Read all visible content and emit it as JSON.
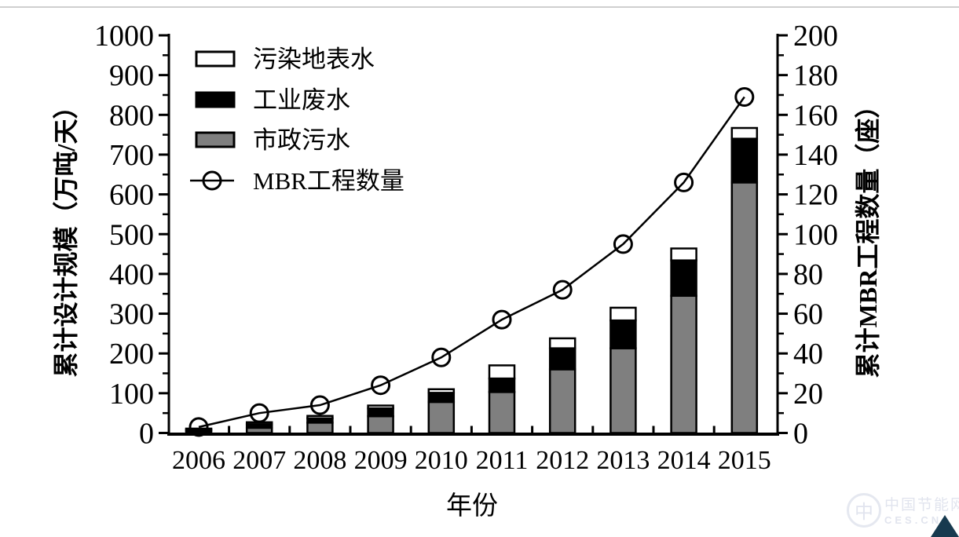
{
  "page": {
    "top_border_color": "#cfcfcf",
    "background": "#ffffff",
    "watermark": {
      "logo_glyph": "中",
      "line1": "中国节能网",
      "line2": "CES.CN"
    },
    "corner_triangle_color": "#173a4f"
  },
  "chart_data": {
    "type": "bar",
    "subtype": "stacked-bars-with-line-overlay",
    "title": "",
    "xlabel": "年份",
    "ylabel_left": "累计设计规模（万吨/天）",
    "ylabel_right": "累计MBR工程数量（座）",
    "categories": [
      "2006",
      "2007",
      "2008",
      "2009",
      "2010",
      "2011",
      "2012",
      "2013",
      "2014",
      "2015"
    ],
    "ylim_left": [
      0,
      1000
    ],
    "ytick_step_left": 100,
    "ylim_right": [
      0,
      200
    ],
    "ytick_step_right": 20,
    "grid": false,
    "legend_position": "top-left-inside",
    "bar_stack_order_bottom_to_top": [
      "市政污水",
      "工业废水",
      "污染地表水"
    ],
    "series": [
      {
        "name": "污染地表水",
        "type": "bar",
        "axis": "left",
        "color": "#ffffff",
        "values": [
          2,
          5,
          6,
          7,
          9,
          33,
          25,
          32,
          30,
          27
        ]
      },
      {
        "name": "工业废水",
        "type": "bar",
        "axis": "left",
        "color": "#000000",
        "values": [
          4,
          9,
          11,
          20,
          23,
          34,
          53,
          70,
          89,
          110
        ]
      },
      {
        "name": "市政污水",
        "type": "bar",
        "axis": "left",
        "color": "#7f7f7f",
        "values": [
          5,
          13,
          26,
          42,
          78,
          103,
          160,
          213,
          345,
          630
        ]
      },
      {
        "name": "MBR工程数量",
        "type": "line",
        "axis": "right",
        "color": "#000000",
        "marker": "open-circle",
        "values": [
          3,
          10,
          14,
          24,
          38,
          57,
          72,
          95,
          126,
          169
        ]
      }
    ],
    "stacked_totals_left_axis": [
      11,
      27,
      43,
      69,
      110,
      170,
      238,
      315,
      464,
      767
    ]
  }
}
